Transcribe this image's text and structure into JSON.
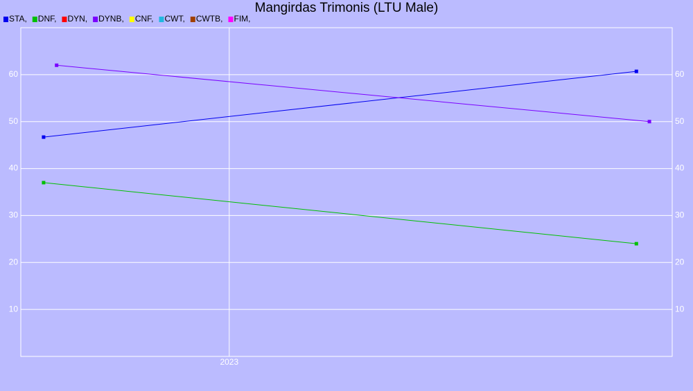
{
  "chart_data": {
    "type": "line",
    "title": "Mangirdas Trimonis (LTU Male)",
    "x": [
      2022.43,
      2024.25
    ],
    "xlim": [
      2022.36,
      2024.36
    ],
    "xticks": [
      2023
    ],
    "ylim": [
      0,
      70
    ],
    "yticks": [
      10,
      20,
      30,
      40,
      50,
      60
    ],
    "grid": true,
    "series": [
      {
        "name": "STA,",
        "color": "#0000ee",
        "values": [
          46.7,
          60.7
        ]
      },
      {
        "name": "DNF,",
        "color": "#00c000",
        "values": [
          37,
          24
        ]
      },
      {
        "name": "DYN,",
        "color": "#ff0000",
        "values": [
          null,
          null
        ]
      },
      {
        "name": "DYNB,",
        "color": "#7a00ff",
        "x": [
          2022.47,
          2024.29
        ],
        "values": [
          62,
          50
        ]
      },
      {
        "name": "CNF,",
        "color": "#ffff00",
        "values": [
          null,
          null
        ]
      },
      {
        "name": "CWT,",
        "color": "#20b8e0",
        "values": [
          null,
          null
        ]
      },
      {
        "name": "CWTB,",
        "color": "#a04000",
        "values": [
          null,
          null
        ]
      },
      {
        "name": "FIM,",
        "color": "#ff00ff",
        "values": [
          null,
          null
        ]
      }
    ]
  }
}
